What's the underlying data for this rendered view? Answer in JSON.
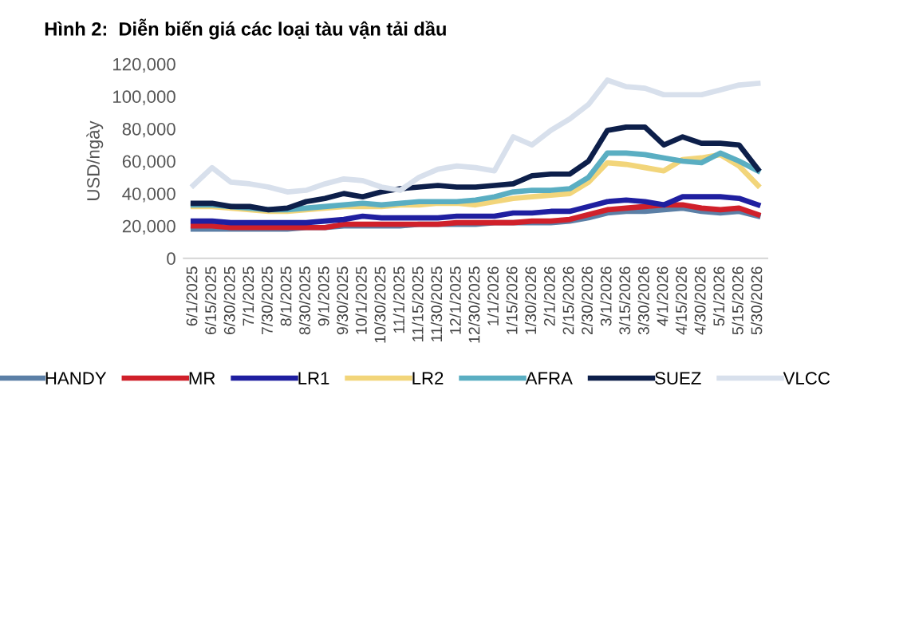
{
  "chart_data": {
    "type": "line",
    "title": "Hình 2:  Diễn biến giá các loại tàu vận tải dầu",
    "ylabel": "USD/ngày",
    "categories": [
      "6/1/2025",
      "6/15/2025",
      "6/30/2025",
      "7/1/2025",
      "7/30/2025",
      "8/1/2025",
      "8/30/2025",
      "9/1/2025",
      "9/30/2025",
      "10/1/2025",
      "10/30/2025",
      "11/1/2025",
      "11/15/2025",
      "11/30/2025",
      "12/1/2025",
      "12/30/2025",
      "1/1/2026",
      "1/15/2026",
      "1/30/2026",
      "2/1/2026",
      "2/15/2026",
      "2/30/2026",
      "3/1/2026",
      "3/15/2026",
      "3/30/2026",
      "4/1/2026",
      "4/15/2026",
      "4/30/2026",
      "5/1/2026",
      "5/15/2026",
      "5/30/2026"
    ],
    "series": [
      {
        "name": "HANDY",
        "color": "#5b7fa6",
        "values": [
          18000,
          18000,
          18000,
          18000,
          18000,
          18000,
          19000,
          19000,
          20000,
          20000,
          20000,
          20000,
          21000,
          21000,
          21000,
          21000,
          22000,
          22000,
          22000,
          22000,
          23000,
          25000,
          28000,
          29000,
          29000,
          30000,
          31000,
          29000,
          28000,
          29000,
          26000
        ]
      },
      {
        "name": "MR",
        "color": "#d0202a",
        "values": [
          20000,
          20000,
          19000,
          19000,
          19000,
          19000,
          19000,
          19000,
          21000,
          21000,
          21000,
          21000,
          21000,
          21000,
          22000,
          22000,
          22000,
          22000,
          23000,
          23000,
          24000,
          27000,
          30000,
          31000,
          32000,
          33000,
          33000,
          31000,
          30000,
          31000,
          27000
        ]
      },
      {
        "name": "LR1",
        "color": "#1f1fa0",
        "values": [
          23000,
          23000,
          22000,
          22000,
          22000,
          22000,
          22000,
          23000,
          24000,
          26000,
          25000,
          25000,
          25000,
          25000,
          26000,
          26000,
          26000,
          28000,
          28000,
          29000,
          29000,
          32000,
          35000,
          36000,
          35000,
          33000,
          38000,
          38000,
          38000,
          37000,
          33000
        ]
      },
      {
        "name": "LR2",
        "color": "#f2d57a",
        "values": [
          32000,
          32000,
          31000,
          30000,
          29000,
          29000,
          30000,
          31000,
          32000,
          32000,
          32000,
          33000,
          33000,
          34000,
          34000,
          33000,
          35000,
          37000,
          38000,
          39000,
          40000,
          47000,
          59000,
          58000,
          56000,
          54000,
          61000,
          62000,
          64000,
          57000,
          45000
        ]
      },
      {
        "name": "AFRA",
        "color": "#5aaec2",
        "values": [
          33000,
          33000,
          32000,
          31000,
          30000,
          30000,
          31000,
          32000,
          33000,
          34000,
          33000,
          34000,
          35000,
          35000,
          35000,
          36000,
          38000,
          41000,
          42000,
          42000,
          43000,
          50000,
          65000,
          65000,
          64000,
          62000,
          60000,
          59000,
          65000,
          60000,
          54000
        ]
      },
      {
        "name": "SUEZ",
        "color": "#0d1f4a",
        "values": [
          34000,
          34000,
          32000,
          32000,
          30000,
          31000,
          35000,
          37000,
          40000,
          38000,
          41000,
          43000,
          44000,
          45000,
          44000,
          44000,
          45000,
          46000,
          51000,
          52000,
          52000,
          60000,
          79000,
          81000,
          81000,
          70000,
          75000,
          71000,
          71000,
          70000,
          55000
        ]
      },
      {
        "name": "VLCC",
        "color": "#d8e0ec",
        "values": [
          45000,
          56000,
          47000,
          46000,
          44000,
          41000,
          42000,
          46000,
          49000,
          48000,
          44000,
          42000,
          50000,
          55000,
          57000,
          56000,
          54000,
          75000,
          70000,
          79000,
          86000,
          95000,
          110000,
          106000,
          105000,
          101000,
          101000,
          101000,
          104000,
          107000,
          108000
        ]
      }
    ],
    "ylim": [
      0,
      120000
    ],
    "yticks": [
      0,
      {
        "value": 20000,
        "label": "20,000"
      },
      {
        "value": 40000,
        "label": "40,000"
      },
      {
        "value": 60000,
        "label": "60,000"
      },
      {
        "value": 80000,
        "label": "80,000"
      },
      {
        "value": 100000,
        "label": "100,000"
      },
      {
        "value": 120000,
        "label": "120,000"
      }
    ],
    "grid": false,
    "legend": "bottom",
    "marker": "none",
    "line_style": "solid"
  }
}
